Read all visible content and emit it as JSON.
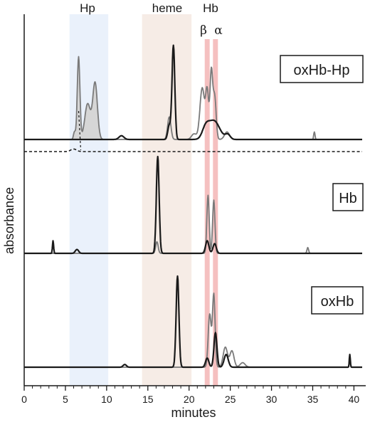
{
  "chart_data": {
    "type": "line",
    "xlabel": "minutes",
    "ylabel": "absorbance",
    "xlim": [
      0,
      41
    ],
    "xticks": [
      0,
      5,
      10,
      15,
      20,
      25,
      30,
      35,
      40
    ],
    "colors": {
      "dark_trace": "#1a1a1a",
      "grey_trace": "#7a7a7a",
      "grey_fill": "#d6d6d6",
      "hp_band": "#eaf1fb",
      "heme_band": "#f6ece6",
      "hb_band": "#f2b0b0"
    },
    "regions": [
      {
        "label": "Hp",
        "x": [
          5.5,
          10.2
        ],
        "color": "#eaf1fb"
      },
      {
        "label": "heme",
        "x": [
          14.3,
          20.3
        ],
        "color": "#f6ece6"
      },
      {
        "label": "Hb",
        "x": [
          22.1,
          23.4
        ],
        "color": "#f2b0b0",
        "sublabels": [
          "β",
          "α"
        ],
        "bands": [
          [
            21.9,
            22.5
          ],
          [
            22.9,
            23.5
          ]
        ]
      }
    ],
    "panels": [
      {
        "label": "oxHb-Hp",
        "series": [
          {
            "style": "grey",
            "filled": true,
            "peaks": [
              [
                6.1,
                0.08,
                0.12
              ],
              [
                6.6,
                0.88,
                0.16
              ],
              [
                7.7,
                0.38,
                0.35
              ],
              [
                8.6,
                0.6,
                0.28
              ],
              [
                17.6,
                0.24,
                0.2
              ],
              [
                20.6,
                0.06,
                0.3
              ],
              [
                21.6,
                0.55,
                0.28
              ],
              [
                22.2,
                0.5,
                0.18
              ],
              [
                22.7,
                0.72,
                0.16
              ],
              [
                23.1,
                0.46,
                0.18
              ],
              [
                24.6,
                0.08,
                0.3
              ],
              [
                35.2,
                0.08,
                0.08
              ]
            ]
          },
          {
            "style": "dark",
            "filled": false,
            "peaks": [
              [
                11.8,
                0.04,
                0.3
              ],
              [
                17.6,
                0.15,
                0.18
              ],
              [
                18.1,
                1.0,
                0.17
              ],
              [
                22.0,
                0.1,
                0.4
              ],
              [
                23.0,
                0.2,
                0.7
              ],
              [
                24.7,
                0.05,
                0.3
              ]
            ]
          }
        ],
        "dashed_trace": {
          "peaks": [
            [
              6.0,
              0.06,
              0.35
            ]
          ]
        }
      },
      {
        "label": "Hb",
        "series": [
          {
            "style": "grey",
            "filled": false,
            "peaks": [
              [
                16.1,
                0.12,
                0.15
              ],
              [
                22.3,
                0.6,
                0.14
              ],
              [
                23.0,
                0.55,
                0.14
              ],
              [
                34.4,
                0.06,
                0.1
              ]
            ]
          },
          {
            "style": "dark",
            "filled": false,
            "peaks": [
              [
                3.5,
                0.13,
                0.07
              ],
              [
                6.4,
                0.04,
                0.2
              ],
              [
                16.2,
                1.0,
                0.17
              ],
              [
                22.2,
                0.13,
                0.2
              ],
              [
                23.1,
                0.1,
                0.2
              ]
            ]
          }
        ]
      },
      {
        "label": "oxHb",
        "series": [
          {
            "style": "grey",
            "filled": false,
            "peaks": [
              [
                22.5,
                0.58,
                0.18
              ],
              [
                23.0,
                0.8,
                0.16
              ],
              [
                24.4,
                0.22,
                0.26
              ],
              [
                25.2,
                0.18,
                0.25
              ],
              [
                26.5,
                0.05,
                0.3
              ],
              [
                39.5,
                0.1,
                0.06
              ]
            ]
          },
          {
            "style": "dark",
            "filled": false,
            "peaks": [
              [
                12.2,
                0.03,
                0.2
              ],
              [
                18.6,
                1.0,
                0.17
              ],
              [
                22.2,
                0.1,
                0.2
              ],
              [
                23.2,
                0.38,
                0.18
              ],
              [
                24.5,
                0.14,
                0.25
              ],
              [
                39.5,
                0.14,
                0.06
              ]
            ]
          }
        ]
      }
    ]
  }
}
